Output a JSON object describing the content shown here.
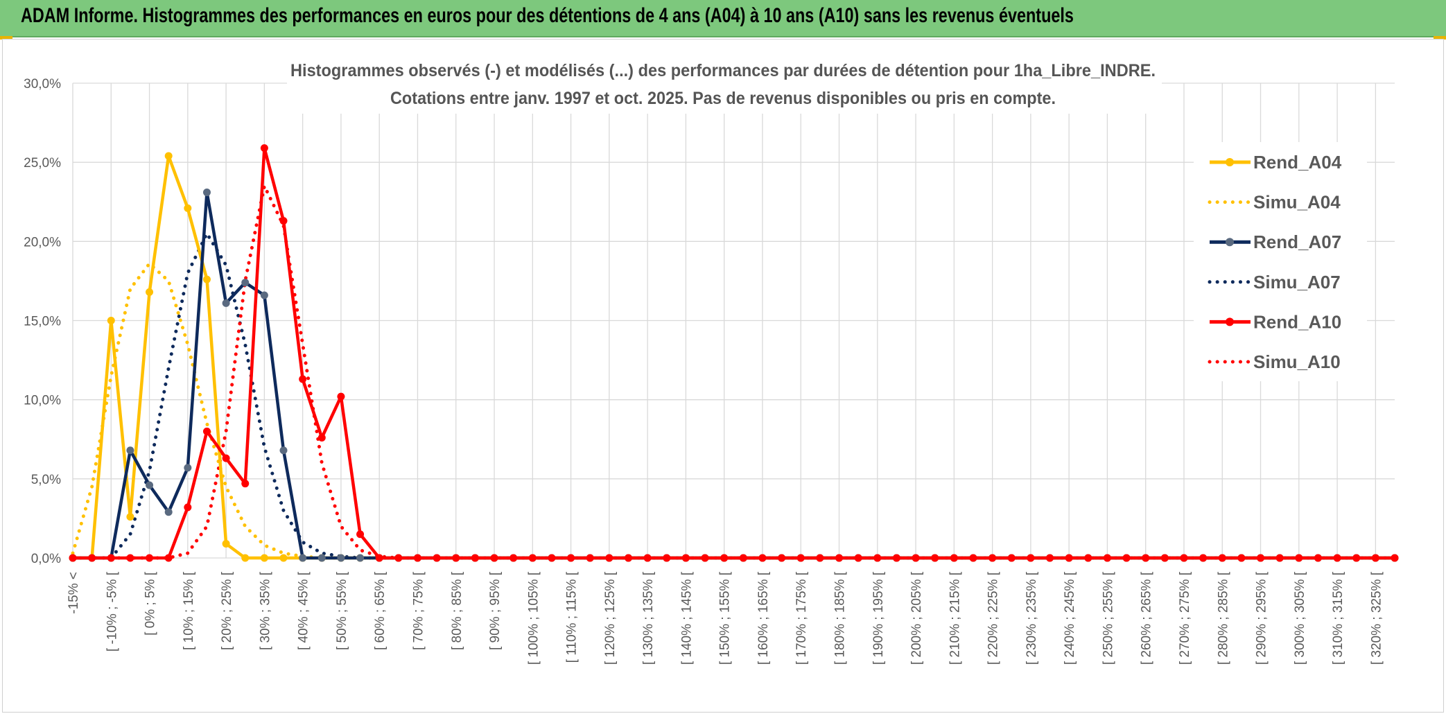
{
  "banner": {
    "title": "ADAM Informe. Histogrammes des performances en euros pour des détentions de 4 ans (A04) à 10 ans (A10) sans les revenus éventuels"
  },
  "colors": {
    "banner_bg": "#7dc87d",
    "A04": "#ffc000",
    "A07": "#0e2a5c",
    "A07_marker": "#5a6a80",
    "A10": "#ff0000",
    "grid": "#d9d9d9"
  },
  "chart_data": {
    "type": "line",
    "title": "Histogrammes observés (-) et modélisés (...) des performances par durées de détention pour 1ha_Libre_INDRE.",
    "subtitle": "Cotations entre janv. 1997 et oct. 2025. Pas de revenus disponibles ou pris en compte.",
    "xlabel": "",
    "ylabel": "",
    "ylim": [
      0,
      30
    ],
    "yticks": [
      "0,0%",
      "5,0%",
      "10,0%",
      "15,0%",
      "20,0%",
      "25,0%",
      "30,0%"
    ],
    "grid": true,
    "legend_position": "right",
    "categories": [
      "-15% <",
      "",
      "[ -10% ; -5% [",
      "",
      "[ 0% ; 5% [",
      "",
      "[ 10% ; 15% [",
      "",
      "[ 20% ; 25% [",
      "",
      "[ 30% ; 35% [",
      "",
      "[ 40% ; 45% [",
      "",
      "[ 50% ; 55% [",
      "",
      "[ 60% ; 65% [",
      "",
      "[ 70% ; 75% [",
      "",
      "[ 80% ; 85% [",
      "",
      "[ 90% ; 95% [",
      "",
      "[ 100% ; 105% [",
      "",
      "[ 110% ; 115% [",
      "",
      "[ 120% ; 125% [",
      "",
      "[ 130% ; 135% [",
      "",
      "[ 140% ; 145% [",
      "",
      "[ 150% ; 155% [",
      "",
      "[ 160% ; 165% [",
      "",
      "[ 170% ; 175% [",
      "",
      "[ 180% ; 185% [",
      "",
      "[ 190% ; 195% [",
      "",
      "[ 200% ; 205% [",
      "",
      "[ 210% ; 215% [",
      "",
      "[ 220% ; 225% [",
      "",
      "[ 230% ; 235% [",
      "",
      "[ 240% ; 245% [",
      "",
      "[ 250% ; 255% [",
      "",
      "[ 260% ; 265% [",
      "",
      "[ 270% ; 275% [",
      "",
      "[ 280% ; 285% [",
      "",
      "[ 290% ; 295% [",
      "",
      "[ 300% ; 305% [",
      "",
      "[ 310% ; 315% [",
      "",
      "[ 320% ; 325% [",
      ""
    ],
    "series": [
      {
        "name": "Rend_A04",
        "style": "solid",
        "color": "#ffc000",
        "marker": "#ffc000",
        "values": [
          0,
          0,
          15.0,
          2.6,
          16.8,
          25.4,
          22.1,
          17.6,
          0.9,
          0,
          0,
          0,
          0,
          0,
          0,
          0,
          0,
          0,
          0,
          0,
          0,
          0,
          0,
          0,
          0,
          0,
          0,
          0,
          0,
          0,
          0,
          0,
          0,
          0,
          0,
          0,
          0,
          0,
          0,
          0,
          0,
          0,
          0,
          0,
          0,
          0,
          0,
          0,
          0,
          0,
          0,
          0,
          0,
          0,
          0,
          0,
          0,
          0,
          0,
          0,
          0,
          0,
          0,
          0,
          0,
          0,
          0,
          0,
          0,
          0
        ]
      },
      {
        "name": "Simu_A04",
        "style": "dotted",
        "color": "#ffc000",
        "values": [
          0.3,
          4.5,
          11.5,
          17.0,
          18.6,
          17.5,
          13.5,
          8.5,
          4.5,
          2.0,
          0.8,
          0.3,
          0.1,
          0,
          0,
          0,
          0,
          0,
          0,
          0,
          0,
          0,
          0,
          0,
          0,
          0,
          0,
          0,
          0,
          0,
          0,
          0,
          0,
          0,
          0,
          0,
          0,
          0,
          0,
          0,
          0,
          0,
          0,
          0,
          0,
          0,
          0,
          0,
          0,
          0,
          0,
          0,
          0,
          0,
          0,
          0,
          0,
          0,
          0,
          0,
          0,
          0,
          0,
          0,
          0,
          0,
          0,
          0,
          0,
          0
        ]
      },
      {
        "name": "Rend_A07",
        "style": "solid",
        "color": "#0e2a5c",
        "marker": "#5a6a80",
        "values": [
          0,
          0,
          0,
          6.8,
          4.6,
          2.9,
          5.7,
          23.1,
          16.1,
          17.4,
          16.6,
          6.8,
          0,
          0,
          0,
          0,
          0,
          0,
          0,
          0,
          0,
          0,
          0,
          0,
          0,
          0,
          0,
          0,
          0,
          0,
          0,
          0,
          0,
          0,
          0,
          0,
          0,
          0,
          0,
          0,
          0,
          0,
          0,
          0,
          0,
          0,
          0,
          0,
          0,
          0,
          0,
          0,
          0,
          0,
          0,
          0,
          0,
          0,
          0,
          0,
          0,
          0,
          0,
          0,
          0,
          0,
          0,
          0,
          0,
          0
        ]
      },
      {
        "name": "Simu_A07",
        "style": "dotted",
        "color": "#0e2a5c",
        "values": [
          0,
          0,
          0,
          1.5,
          5.5,
          12.0,
          18.0,
          20.5,
          18.5,
          13.5,
          7.0,
          3.0,
          1.0,
          0.3,
          0.1,
          0,
          0,
          0,
          0,
          0,
          0,
          0,
          0,
          0,
          0,
          0,
          0,
          0,
          0,
          0,
          0,
          0,
          0,
          0,
          0,
          0,
          0,
          0,
          0,
          0,
          0,
          0,
          0,
          0,
          0,
          0,
          0,
          0,
          0,
          0,
          0,
          0,
          0,
          0,
          0,
          0,
          0,
          0,
          0,
          0,
          0,
          0,
          0,
          0,
          0,
          0,
          0,
          0,
          0,
          0
        ]
      },
      {
        "name": "Rend_A10",
        "style": "solid",
        "color": "#ff0000",
        "marker": "#ff0000",
        "values": [
          0,
          0,
          0,
          0,
          0,
          0,
          3.2,
          8.0,
          6.3,
          4.7,
          25.9,
          21.3,
          11.3,
          7.6,
          10.2,
          1.5,
          0,
          0,
          0,
          0,
          0,
          0,
          0,
          0,
          0,
          0,
          0,
          0,
          0,
          0,
          0,
          0,
          0,
          0,
          0,
          0,
          0,
          0,
          0,
          0,
          0,
          0,
          0,
          0,
          0,
          0,
          0,
          0,
          0,
          0,
          0,
          0,
          0,
          0,
          0,
          0,
          0,
          0,
          0,
          0,
          0,
          0,
          0,
          0,
          0,
          0,
          0,
          0,
          0,
          0
        ]
      },
      {
        "name": "Simu_A10",
        "style": "dotted",
        "color": "#ff0000",
        "values": [
          0,
          0,
          0,
          0,
          0,
          0,
          0.3,
          2.0,
          8.0,
          17.5,
          23.5,
          21.0,
          13.5,
          6.0,
          2.0,
          0.5,
          0.1,
          0,
          0,
          0,
          0,
          0,
          0,
          0,
          0,
          0,
          0,
          0,
          0,
          0,
          0,
          0,
          0,
          0,
          0,
          0,
          0,
          0,
          0,
          0,
          0,
          0,
          0,
          0,
          0,
          0,
          0,
          0,
          0,
          0,
          0,
          0,
          0,
          0,
          0,
          0,
          0,
          0,
          0,
          0,
          0,
          0,
          0,
          0,
          0,
          0,
          0,
          0,
          0,
          0
        ]
      }
    ]
  }
}
